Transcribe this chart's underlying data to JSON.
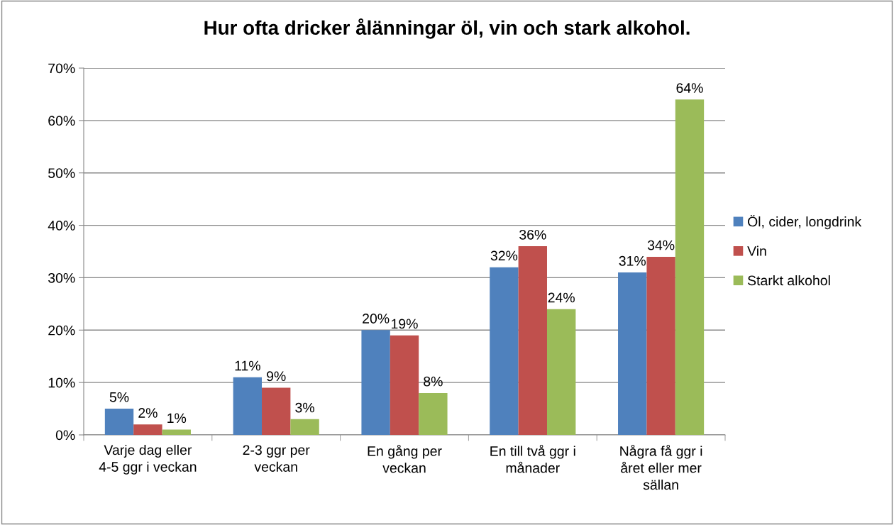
{
  "chart_data": {
    "type": "bar",
    "title": "Hur ofta dricker ålänningar öl, vin och stark alkohol.",
    "categories": [
      "Varje dag eller\n4-5 ggr i veckan",
      "2-3 ggr per\nveckan",
      "En gång per\nveckan",
      "En till två ggr i\nmånader",
      "Några få ggr i\nåret eller mer\nsällan"
    ],
    "series": [
      {
        "name": "Öl, cider, longdrink",
        "color": "#4f81bd",
        "values": [
          5,
          11,
          20,
          32,
          31
        ],
        "value_labels": [
          "5%",
          "11%",
          "20%",
          "32%",
          "31%"
        ]
      },
      {
        "name": "Vin",
        "color": "#c0504d",
        "values": [
          2,
          9,
          19,
          36,
          34
        ],
        "value_labels": [
          "2%",
          "9%",
          "19%",
          "36%",
          "34%"
        ]
      },
      {
        "name": "Starkt alkohol",
        "color": "#9bbb59",
        "values": [
          1,
          3,
          8,
          24,
          64
        ],
        "value_labels": [
          "1%",
          "3%",
          "8%",
          "24%",
          "64%"
        ]
      }
    ],
    "ylim": [
      0,
      70
    ],
    "yticks": [
      {
        "value": 0,
        "label": "0%"
      },
      {
        "value": 10,
        "label": "10%"
      },
      {
        "value": 20,
        "label": "20%"
      },
      {
        "value": 30,
        "label": "30%"
      },
      {
        "value": 40,
        "label": "40%"
      },
      {
        "value": 50,
        "label": "50%"
      },
      {
        "value": 60,
        "label": "60%"
      },
      {
        "value": 70,
        "label": "70%"
      }
    ],
    "grid": "y",
    "legend": "right"
  }
}
